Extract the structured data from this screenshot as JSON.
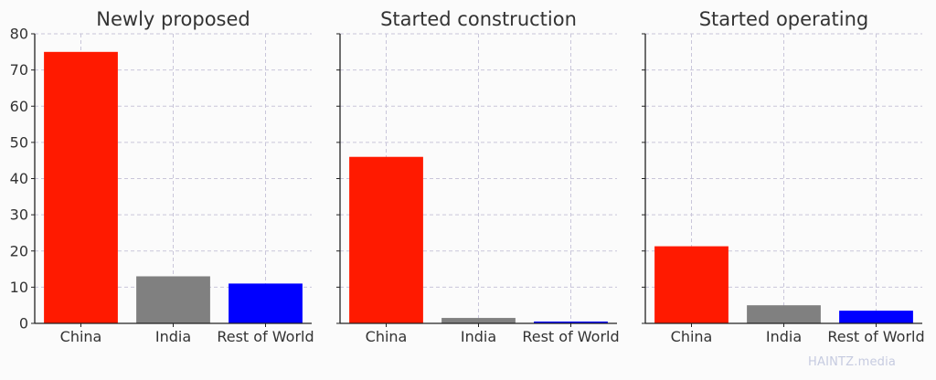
{
  "watermark": "HAINTZ.media",
  "chart_data": [
    {
      "type": "bar",
      "title": "Newly proposed",
      "categories": [
        "China",
        "India",
        "Rest of World"
      ],
      "values": [
        75,
        13,
        11
      ],
      "colors": [
        "#ff1a00",
        "#808080",
        "#0000ff"
      ],
      "ylim": [
        0,
        80
      ],
      "yticks": [
        0,
        10,
        20,
        30,
        40,
        50,
        60,
        70,
        80
      ],
      "show_ytick_labels": true,
      "grid": true
    },
    {
      "type": "bar",
      "title": "Started construction",
      "categories": [
        "China",
        "India",
        "Rest of World"
      ],
      "values": [
        46,
        1.5,
        0.5
      ],
      "colors": [
        "#ff1a00",
        "#808080",
        "#0000ff"
      ],
      "ylim": [
        0,
        80
      ],
      "yticks": [
        0,
        10,
        20,
        30,
        40,
        50,
        60,
        70,
        80
      ],
      "show_ytick_labels": false,
      "grid": true
    },
    {
      "type": "bar",
      "title": "Started operating",
      "categories": [
        "China",
        "India",
        "Rest of World"
      ],
      "values": [
        21.3,
        5,
        3.5
      ],
      "colors": [
        "#ff1a00",
        "#808080",
        "#0000ff"
      ],
      "ylim": [
        0,
        80
      ],
      "yticks": [
        0,
        10,
        20,
        30,
        40,
        50,
        60,
        70,
        80
      ],
      "show_ytick_labels": false,
      "grid": true
    }
  ]
}
